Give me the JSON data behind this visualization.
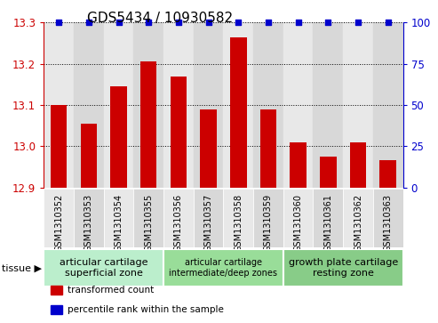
{
  "title": "GDS5434 / 10930582",
  "categories": [
    "GSM1310352",
    "GSM1310353",
    "GSM1310354",
    "GSM1310355",
    "GSM1310356",
    "GSM1310357",
    "GSM1310358",
    "GSM1310359",
    "GSM1310360",
    "GSM1310361",
    "GSM1310362",
    "GSM1310363"
  ],
  "bar_values": [
    13.1,
    13.055,
    13.145,
    13.205,
    13.17,
    13.09,
    13.265,
    13.09,
    13.01,
    12.975,
    13.01,
    12.965
  ],
  "percentile_values": [
    100,
    100,
    100,
    100,
    100,
    100,
    100,
    100,
    100,
    100,
    100,
    100
  ],
  "bar_color": "#cc0000",
  "percentile_color": "#0000cc",
  "ylim_left": [
    12.9,
    13.3
  ],
  "ylim_right": [
    0,
    100
  ],
  "yticks_left": [
    12.9,
    13.0,
    13.1,
    13.2,
    13.3
  ],
  "yticks_right": [
    0,
    25,
    50,
    75,
    100
  ],
  "grid_ticks": [
    13.0,
    13.1,
    13.2,
    13.3
  ],
  "tissue_groups": [
    {
      "label": "articular cartilage\nsuperficial zone",
      "start": 0,
      "end": 3,
      "color": "#bbeecc",
      "fontsize": 8
    },
    {
      "label": "articular cartilage\nintermediate/deep zones",
      "start": 4,
      "end": 7,
      "color": "#99dd99",
      "fontsize": 7
    },
    {
      "label": "growth plate cartilage\nresting zone",
      "start": 8,
      "end": 11,
      "color": "#88cc88",
      "fontsize": 8
    }
  ],
  "tissue_label": "tissue",
  "legend_items": [
    {
      "label": "transformed count",
      "color": "#cc0000"
    },
    {
      "label": "percentile rank within the sample",
      "color": "#0000cc"
    }
  ],
  "bar_width": 0.55,
  "cell_color_even": "#e8e8e8",
  "cell_color_odd": "#d8d8d8",
  "tick_label_color_left": "#cc0000",
  "tick_label_color_right": "#0000cc",
  "title_fontsize": 11,
  "tick_fontsize": 8.5,
  "label_fontsize": 7
}
